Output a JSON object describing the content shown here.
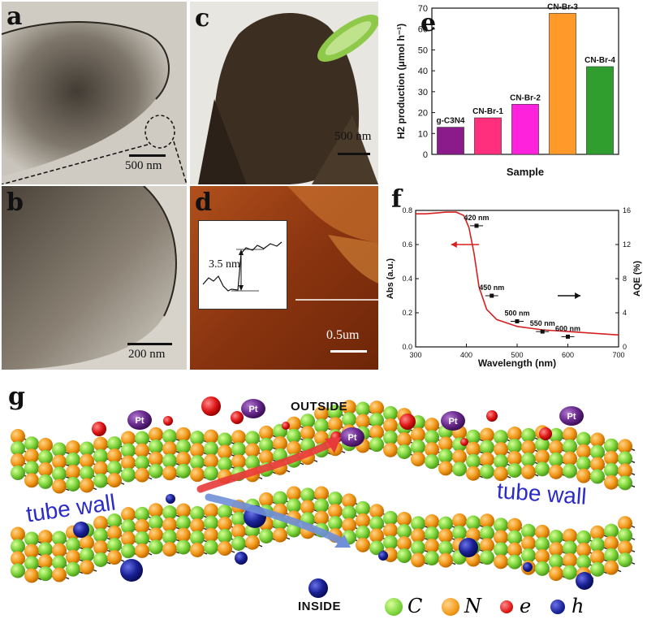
{
  "panel_labels": {
    "a": "a",
    "b": "b",
    "c": "c",
    "d": "d",
    "e": "e",
    "f": "f",
    "g": "g"
  },
  "scale_bars": {
    "a": "500 nm",
    "b": "200 nm",
    "c": "500 nm",
    "d": "0.5um"
  },
  "afm_inset": {
    "height_label": "3.5 nm"
  },
  "chart_data": [
    {
      "type": "bar",
      "panel": "e",
      "categories": [
        "g-C3N4",
        "CN-Br-1",
        "CN-Br-2",
        "CN-Br-3",
        "CN-Br-4"
      ],
      "bar_labels": [
        "g-C3N4",
        "CN-Br-1",
        "CN-Br-2",
        "CN-Br-3",
        "CN-Br-4"
      ],
      "values": [
        13,
        17.5,
        24,
        67.5,
        42
      ],
      "colors": [
        "#8b1a8b",
        "#ff2f7d",
        "#ff22dd",
        "#ff9a2a",
        "#2f9e2f"
      ],
      "xlabel": "Sample",
      "ylabel": "H2 production (μmol h⁻¹)",
      "ylim": [
        0,
        70
      ],
      "yticks": [
        "0",
        "10",
        "20",
        "30",
        "40",
        "50",
        "60",
        "70"
      ]
    },
    {
      "type": "line",
      "panel": "f",
      "xlabel": "Wavelength (nm)",
      "ylabel_left": "Abs (a.u.)",
      "ylabel_right": "AQE (%)",
      "xlim": [
        300,
        700
      ],
      "ylim_left": [
        0,
        0.8
      ],
      "ylim_right": [
        0,
        16
      ],
      "xticks": [
        "300",
        "400",
        "500",
        "600",
        "700"
      ],
      "yticks_left": [
        "0.0",
        "0.2",
        "0.4",
        "0.6",
        "0.8"
      ],
      "yticks_right": [
        "0",
        "4",
        "8",
        "12",
        "16"
      ],
      "series": [
        {
          "axis": "left",
          "color": "#d62020",
          "x": [
            300,
            320,
            340,
            360,
            380,
            395,
            405,
            415,
            425,
            440,
            460,
            500,
            550,
            600,
            650,
            700
          ],
          "y": [
            0.78,
            0.78,
            0.785,
            0.79,
            0.79,
            0.77,
            0.7,
            0.55,
            0.35,
            0.22,
            0.16,
            0.12,
            0.1,
            0.09,
            0.08,
            0.07
          ]
        },
        {
          "axis": "right",
          "x": [
            420,
            450,
            500,
            550,
            600
          ],
          "y": [
            14.2,
            6.0,
            3.0,
            1.8,
            1.2
          ],
          "labels": [
            "420 nm",
            "450 nm",
            "500 nm",
            "550 nm",
            "600 nm"
          ]
        }
      ]
    }
  ],
  "schematic": {
    "outside_label": "OUTSIDE",
    "inside_label": "INSIDE",
    "tube_wall_left": "tube wall",
    "tube_wall_right": "tube wall",
    "pt_label": "Pt",
    "legend": [
      {
        "symbol": "C",
        "color": "#7cd43a"
      },
      {
        "symbol": "N",
        "color": "#f39a1a"
      },
      {
        "symbol": "e",
        "color": "#e01919"
      },
      {
        "symbol": "h",
        "color": "#1a2196"
      }
    ]
  }
}
